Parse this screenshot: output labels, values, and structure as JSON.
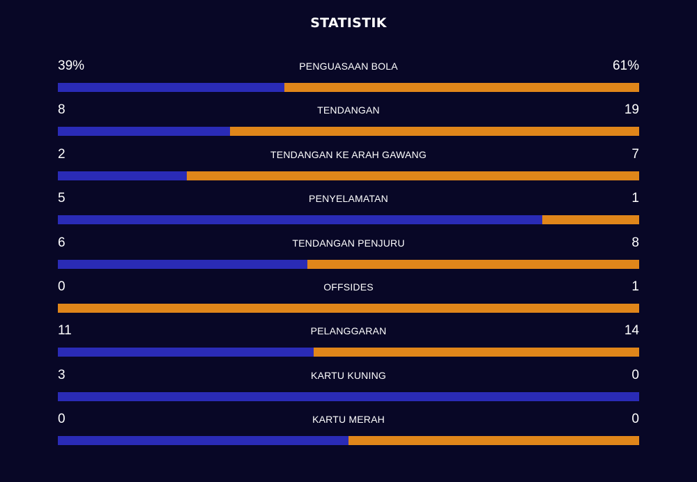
{
  "title": "STATISTIK",
  "colors": {
    "background": "#080726",
    "home": "#2A2BB6",
    "away": "#E0861A",
    "text": "#FFFFFF"
  },
  "stats": [
    {
      "label": "PENGUASAAN BOLA",
      "home": "39%",
      "away": "61%",
      "home_share": 0.39
    },
    {
      "label": "TENDANGAN",
      "home": "8",
      "away": "19",
      "home_share": 0.296
    },
    {
      "label": "TENDANGAN KE ARAH GAWANG",
      "home": "2",
      "away": "7",
      "home_share": 0.222
    },
    {
      "label": "PENYELAMATAN",
      "home": "5",
      "away": "1",
      "home_share": 0.833
    },
    {
      "label": "TENDANGAN PENJURU",
      "home": "6",
      "away": "8",
      "home_share": 0.429
    },
    {
      "label": "OFFSIDES",
      "home": "0",
      "away": "1",
      "home_share": 0.0
    },
    {
      "label": "PELANGGARAN",
      "home": "11",
      "away": "14",
      "home_share": 0.44
    },
    {
      "label": "KARTU KUNING",
      "home": "3",
      "away": "0",
      "home_share": 1.0
    },
    {
      "label": "KARTU MERAH",
      "home": "0",
      "away": "0",
      "home_share": 0.5
    }
  ]
}
